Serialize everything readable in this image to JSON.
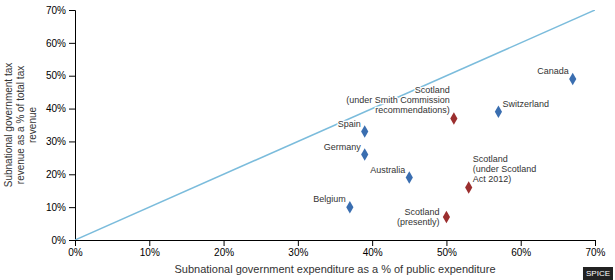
{
  "chart_data": {
    "type": "scatter",
    "xlabel": "Subnational government expenditure as a % of public expenditure",
    "ylabel": "Subnational government tax\nrevenue as a % of total tax\nrevenue",
    "xlim": [
      0,
      70
    ],
    "ylim": [
      0,
      70
    ],
    "xticks": [
      {
        "value": 0,
        "label": "0%"
      },
      {
        "value": 10,
        "label": "10%"
      },
      {
        "value": 20,
        "label": "20%"
      },
      {
        "value": 30,
        "label": "30%"
      },
      {
        "value": 40,
        "label": "40%"
      },
      {
        "value": 50,
        "label": "50%"
      },
      {
        "value": 60,
        "label": "60%"
      },
      {
        "value": 70,
        "label": "70%"
      }
    ],
    "yticks": [
      {
        "value": 0,
        "label": "0%"
      },
      {
        "value": 10,
        "label": "10%"
      },
      {
        "value": 20,
        "label": "20%"
      },
      {
        "value": 30,
        "label": "30%"
      },
      {
        "value": 40,
        "label": "40%"
      },
      {
        "value": 50,
        "label": "50%"
      },
      {
        "value": 60,
        "label": "60%"
      },
      {
        "value": 70,
        "label": "70%"
      }
    ],
    "grid": false,
    "annotations": [
      "SPICE"
    ],
    "series": [
      {
        "type": "line",
        "color": "#7bbcdc",
        "line_style": "solid",
        "x": [
          0,
          70
        ],
        "values": [
          0,
          70
        ]
      },
      {
        "type": "scatter",
        "color": "#3a6eb0",
        "marker": "diamond",
        "x": [
          37,
          39,
          39,
          45,
          57,
          67
        ],
        "values": [
          10,
          26,
          33,
          19,
          39,
          49
        ],
        "labels": [
          "Belgium",
          "Germany",
          "Spain",
          "Australia",
          "Switzerland",
          "Canada"
        ]
      },
      {
        "type": "scatter",
        "color": "#9b2e2e",
        "marker": "diamond",
        "x": [
          51,
          53,
          50
        ],
        "values": [
          37,
          16,
          7
        ],
        "labels": [
          "Scotland\n(under Smith Commission\nrecommendations)",
          "Scotland\n(under Scotland\nAct 2012)",
          "Scotland\n(presently)"
        ]
      }
    ]
  }
}
